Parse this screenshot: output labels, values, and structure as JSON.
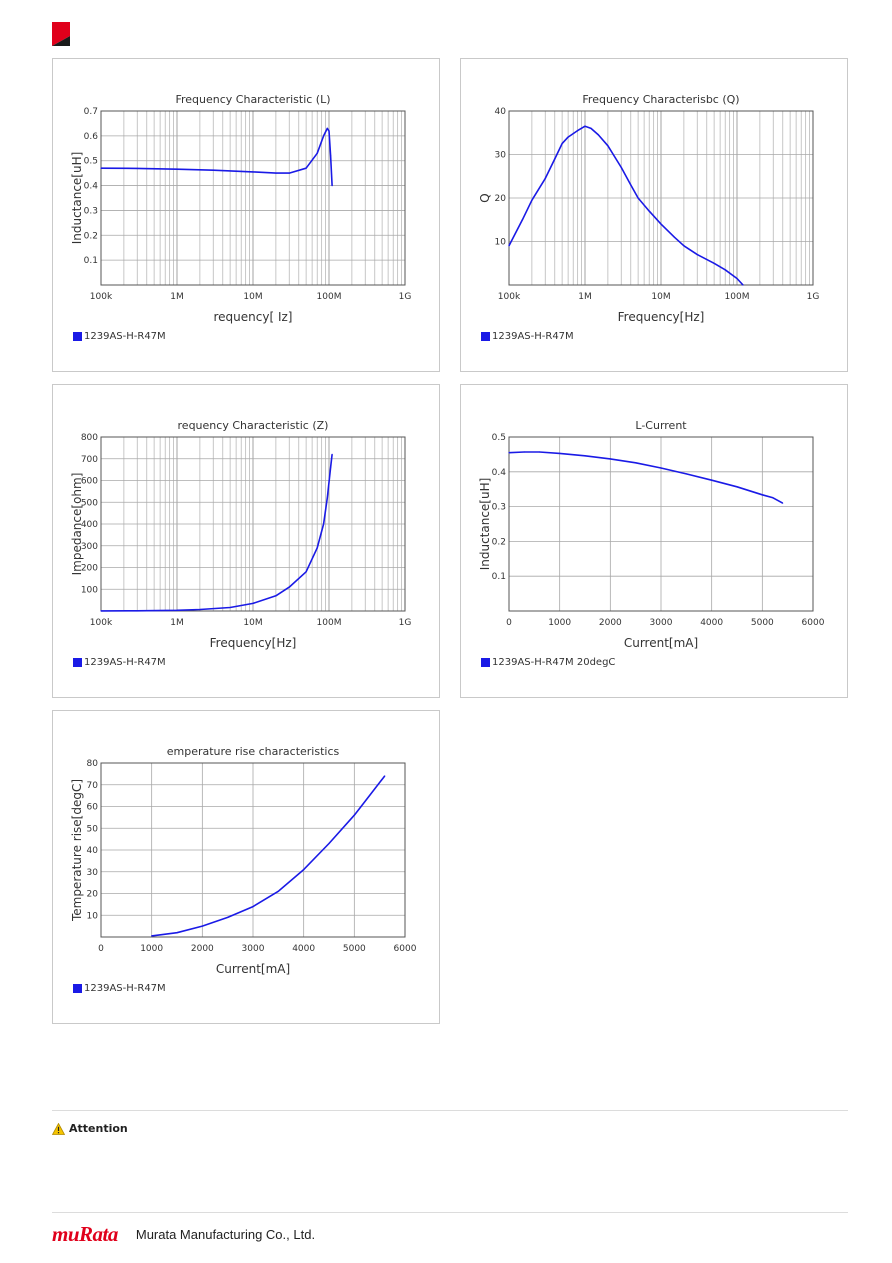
{
  "brand": {
    "corner_color": "#e0001b",
    "logo_text": "muRata",
    "company": "Murata Manufacturing Co., Ltd."
  },
  "attention": {
    "label": "Attention",
    "icon": "warning-icon"
  },
  "series_color": "#1a1ae6",
  "charts": [
    {
      "type": "line",
      "xscale": "log",
      "title": "Frequency   Characteristic (L)",
      "xlabel": "requency[ Iz]",
      "ylabel": "Inductance[uH]",
      "xlim": [
        100000,
        1000000000
      ],
      "ylim": [
        0,
        0.7
      ],
      "xticks": [
        {
          "v": 100000,
          "t": "100k"
        },
        {
          "v": 1000000,
          "t": "1M"
        },
        {
          "v": 10000000,
          "t": "10M"
        },
        {
          "v": 100000000,
          "t": "100M"
        },
        {
          "v": 1000000000,
          "t": "1G"
        }
      ],
      "yticks": [
        {
          "v": 0.1,
          "t": "0.1"
        },
        {
          "v": 0.2,
          "t": "0.2"
        },
        {
          "v": 0.3,
          "t": "0.3"
        },
        {
          "v": 0.4,
          "t": "0.4"
        },
        {
          "v": 0.5,
          "t": "0.5"
        },
        {
          "v": 0.6,
          "t": "0.6"
        },
        {
          "v": 0.7,
          "t": "0.7"
        }
      ],
      "legend": "1239AS-H-R47M",
      "series": [
        {
          "x": [
            100000,
            300000,
            1000000,
            3000000,
            10000000,
            20000000,
            30000000,
            50000000,
            70000000,
            85000000,
            95000000,
            100000000,
            105000000,
            110000000
          ],
          "y": [
            0.47,
            0.469,
            0.466,
            0.462,
            0.455,
            0.45,
            0.45,
            0.47,
            0.53,
            0.6,
            0.63,
            0.62,
            0.52,
            0.4
          ]
        }
      ]
    },
    {
      "type": "line",
      "xscale": "log",
      "title": "Frequency   Characterisbc (Q)",
      "xlabel": "Frequency[Hz]",
      "ylabel": "Q",
      "xlim": [
        100000,
        1000000000
      ],
      "ylim": [
        0,
        40
      ],
      "xticks": [
        {
          "v": 100000,
          "t": "100k"
        },
        {
          "v": 1000000,
          "t": "1M"
        },
        {
          "v": 10000000,
          "t": "10M"
        },
        {
          "v": 100000000,
          "t": "100M"
        },
        {
          "v": 1000000000,
          "t": "1G"
        }
      ],
      "yticks": [
        {
          "v": 10,
          "t": "10"
        },
        {
          "v": 20,
          "t": "20"
        },
        {
          "v": 30,
          "t": "30"
        },
        {
          "v": 40,
          "t": "40"
        }
      ],
      "legend": "1239AS-H-R47M",
      "series": [
        {
          "x": [
            100000,
            150000,
            200000,
            300000,
            400000,
            500000,
            600000,
            800000,
            1000000,
            1200000,
            1500000,
            2000000,
            3000000,
            4000000,
            5000000,
            7000000,
            10000000,
            15000000,
            20000000,
            30000000,
            50000000,
            70000000,
            100000000,
            120000000
          ],
          "y": [
            9,
            15,
            19.5,
            24.5,
            29,
            32.5,
            34,
            35.5,
            36.5,
            36,
            34.5,
            32,
            27,
            23,
            20,
            17,
            14,
            11,
            9,
            7,
            5,
            3.5,
            1.5,
            0
          ]
        }
      ]
    },
    {
      "type": "line",
      "xscale": "log",
      "title": "requency   Characteristic (Z)",
      "xlabel": "Frequency[Hz]",
      "ylabel": "Impedance[ohm]",
      "xlim": [
        100000,
        1000000000
      ],
      "ylim": [
        0,
        800
      ],
      "xticks": [
        {
          "v": 100000,
          "t": "100k"
        },
        {
          "v": 1000000,
          "t": "1M"
        },
        {
          "v": 10000000,
          "t": "10M"
        },
        {
          "v": 100000000,
          "t": "100M"
        },
        {
          "v": 1000000000,
          "t": "1G"
        }
      ],
      "yticks": [
        {
          "v": 100,
          "t": "100"
        },
        {
          "v": 200,
          "t": "200"
        },
        {
          "v": 300,
          "t": "300"
        },
        {
          "v": 400,
          "t": "400"
        },
        {
          "v": 500,
          "t": "500"
        },
        {
          "v": 600,
          "t": "600"
        },
        {
          "v": 700,
          "t": "700"
        },
        {
          "v": 800,
          "t": "800"
        }
      ],
      "legend": "1239AS-H-R47M",
      "series": [
        {
          "x": [
            100000,
            300000,
            1000000,
            2000000,
            5000000,
            10000000,
            20000000,
            30000000,
            50000000,
            70000000,
            85000000,
            95000000,
            105000000,
            110000000
          ],
          "y": [
            0.3,
            1,
            3,
            7,
            16,
            35,
            70,
            110,
            180,
            290,
            400,
            520,
            660,
            720
          ]
        }
      ]
    },
    {
      "type": "line",
      "xscale": "linear",
      "title": "L-Current",
      "xlabel": "Current[mA]",
      "ylabel": "Inductance[uH]",
      "xlim": [
        0,
        6000
      ],
      "ylim": [
        0,
        0.5
      ],
      "xticks": [
        {
          "v": 0,
          "t": "0"
        },
        {
          "v": 1000,
          "t": "1000"
        },
        {
          "v": 2000,
          "t": "2000"
        },
        {
          "v": 3000,
          "t": "3000"
        },
        {
          "v": 4000,
          "t": "4000"
        },
        {
          "v": 5000,
          "t": "5000"
        },
        {
          "v": 6000,
          "t": "6000"
        }
      ],
      "yticks": [
        {
          "v": 0.1,
          "t": "0.1"
        },
        {
          "v": 0.2,
          "t": "0.2"
        },
        {
          "v": 0.3,
          "t": "0.3"
        },
        {
          "v": 0.4,
          "t": "0.4"
        },
        {
          "v": 0.5,
          "t": "0.5"
        }
      ],
      "legend": "1239AS-H-R47M 20degC",
      "series": [
        {
          "x": [
            0,
            300,
            600,
            1000,
            1500,
            2000,
            2500,
            3000,
            3500,
            4000,
            4500,
            5000,
            5200,
            5400
          ],
          "y": [
            0.455,
            0.457,
            0.457,
            0.453,
            0.446,
            0.437,
            0.426,
            0.411,
            0.394,
            0.376,
            0.357,
            0.334,
            0.326,
            0.31
          ]
        }
      ]
    },
    {
      "type": "line",
      "xscale": "linear",
      "title": "emperature rise characteristics",
      "xlabel": "Current[mA]",
      "ylabel": "Temperature rise[degC]",
      "xlim": [
        0,
        6000
      ],
      "ylim": [
        0,
        80
      ],
      "xticks": [
        {
          "v": 0,
          "t": "0"
        },
        {
          "v": 1000,
          "t": "1000"
        },
        {
          "v": 2000,
          "t": "2000"
        },
        {
          "v": 3000,
          "t": "3000"
        },
        {
          "v": 4000,
          "t": "4000"
        },
        {
          "v": 5000,
          "t": "5000"
        },
        {
          "v": 6000,
          "t": "6000"
        }
      ],
      "yticks": [
        {
          "v": 10,
          "t": "10"
        },
        {
          "v": 20,
          "t": "20"
        },
        {
          "v": 30,
          "t": "30"
        },
        {
          "v": 40,
          "t": "40"
        },
        {
          "v": 50,
          "t": "50"
        },
        {
          "v": 60,
          "t": "60"
        },
        {
          "v": 70,
          "t": "70"
        },
        {
          "v": 80,
          "t": "80"
        }
      ],
      "legend": "1239AS-H-R47M",
      "series": [
        {
          "x": [
            1000,
            1500,
            2000,
            2500,
            3000,
            3500,
            4000,
            4500,
            5000,
            5300,
            5600
          ],
          "y": [
            0.5,
            2,
            5,
            9,
            14,
            21,
            31,
            43,
            56,
            65,
            74
          ]
        }
      ]
    }
  ]
}
